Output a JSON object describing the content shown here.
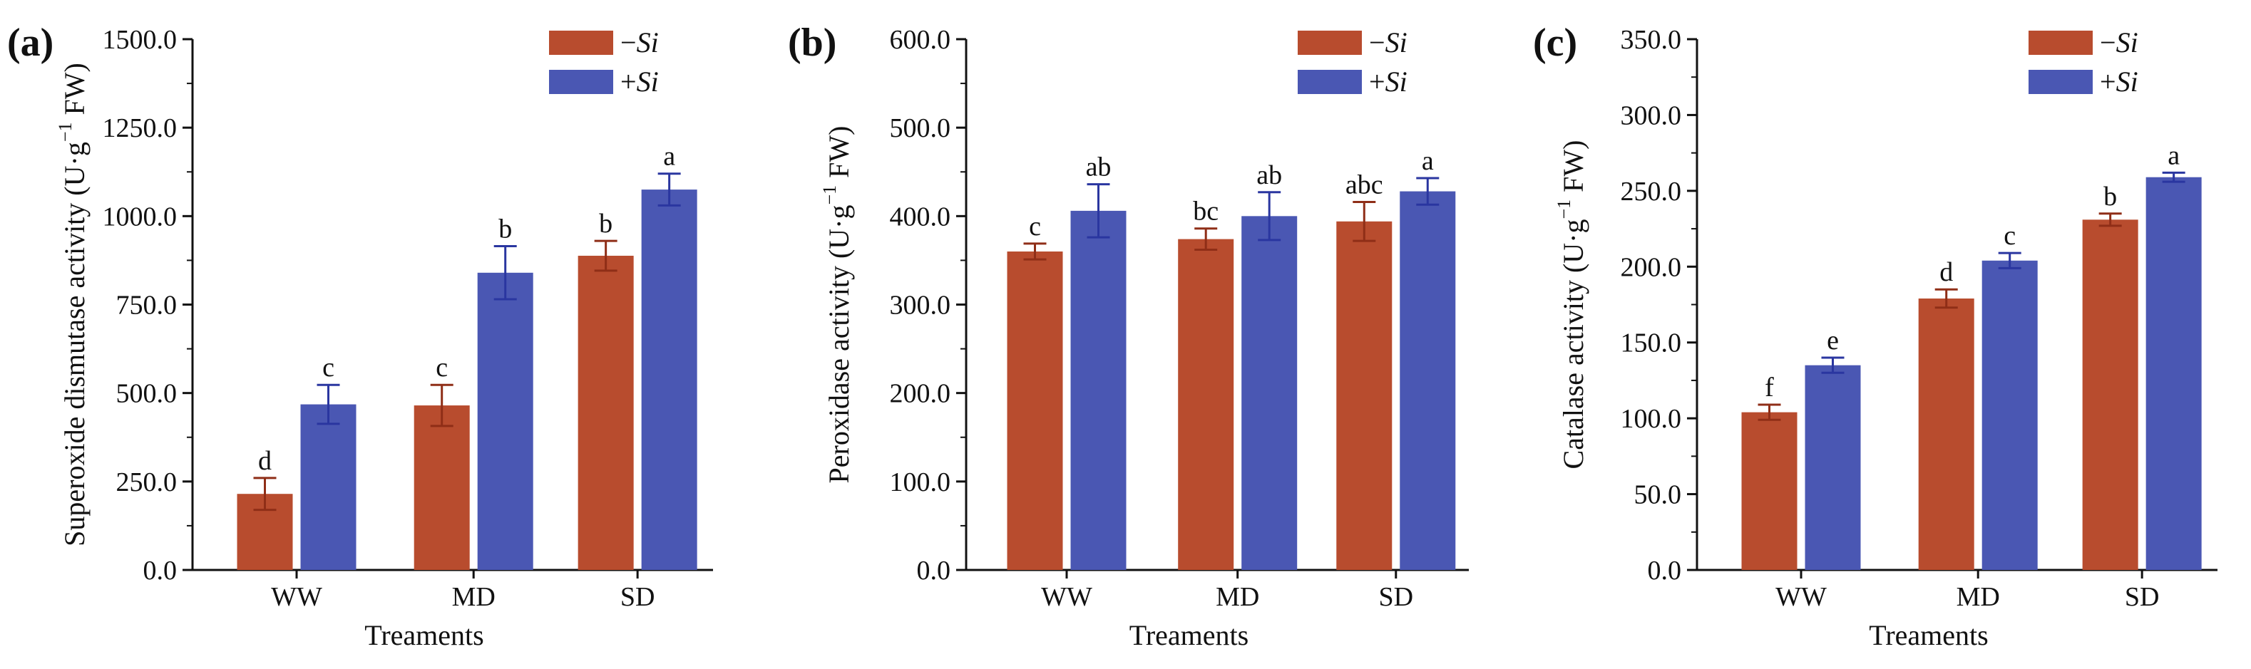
{
  "figure": {
    "legend": {
      "entries": [
        {
          "sign": "−",
          "name": "Si",
          "color": "#b84c2e"
        },
        {
          "sign": "+",
          "name": "Si",
          "color": "#4a57b3"
        }
      ]
    },
    "colors": {
      "minus_si": "#b84c2e",
      "plus_si": "#4a57b3",
      "error_bar_minus": "#8f2e17",
      "error_bar_plus": "#2a36a0",
      "axis": "#111111"
    }
  },
  "chart_data": [
    {
      "panel": "(a)",
      "type": "bar",
      "title": "",
      "xlabel": "Treaments",
      "ylabel": "Superoxide dismutase activity (U·g⁻¹ FW)",
      "ylabel_parts": {
        "before": "Superoxide dismutase activity (U·g",
        "sup": "−1",
        "after": " FW)"
      },
      "categories": [
        "WW",
        "MD",
        "SD"
      ],
      "ylim": [
        0,
        1500
      ],
      "yticks": [
        "0.0",
        "250.0",
        "500.0",
        "750.0",
        "1000.0",
        "1250.0",
        "1500.0"
      ],
      "series": [
        {
          "name": "−Si",
          "values": [
            215,
            465,
            888
          ],
          "errors": [
            45,
            58,
            42
          ],
          "labels": [
            "d",
            "c",
            "b"
          ]
        },
        {
          "name": "+Si",
          "values": [
            468,
            840,
            1075
          ],
          "errors": [
            55,
            75,
            45
          ],
          "labels": [
            "c",
            "b",
            "a"
          ]
        }
      ]
    },
    {
      "panel": "(b)",
      "type": "bar",
      "title": "",
      "xlabel": "Treaments",
      "ylabel": "Peroxidase activity (U·g⁻¹ FW)",
      "ylabel_parts": {
        "before": "Peroxidase activity (U·g",
        "sup": "−1",
        "after": " FW)"
      },
      "categories": [
        "WW",
        "MD",
        "SD"
      ],
      "ylim": [
        0,
        600
      ],
      "yticks": [
        "0.0",
        "100.0",
        "200.0",
        "300.0",
        "400.0",
        "500.0",
        "600.0"
      ],
      "series": [
        {
          "name": "−Si",
          "values": [
            360,
            374,
            394
          ],
          "errors": [
            9,
            12,
            22
          ],
          "labels": [
            "c",
            "bc",
            "abc"
          ]
        },
        {
          "name": "+Si",
          "values": [
            406,
            400,
            428
          ],
          "errors": [
            30,
            27,
            15
          ],
          "labels": [
            "ab",
            "ab",
            "a"
          ]
        }
      ]
    },
    {
      "panel": "(c)",
      "type": "bar",
      "title": "",
      "xlabel": "Treaments",
      "ylabel": "Catalase activity (U·g⁻¹ FW)",
      "ylabel_parts": {
        "before": "Catalase activity (U·g",
        "sup": "−1",
        "after": " FW)"
      },
      "categories": [
        "WW",
        "MD",
        "SD"
      ],
      "ylim": [
        0,
        350
      ],
      "yticks": [
        "0.0",
        "50.0",
        "100.0",
        "150.0",
        "200.0",
        "250.0",
        "300.0",
        "350.0"
      ],
      "series": [
        {
          "name": "−Si",
          "values": [
            104,
            179,
            231
          ],
          "errors": [
            5,
            6,
            4
          ],
          "labels": [
            "f",
            "d",
            "b"
          ]
        },
        {
          "name": "+Si",
          "values": [
            135,
            204,
            259
          ],
          "errors": [
            5,
            5,
            3
          ],
          "labels": [
            "e",
            "c",
            "a"
          ]
        }
      ]
    }
  ]
}
